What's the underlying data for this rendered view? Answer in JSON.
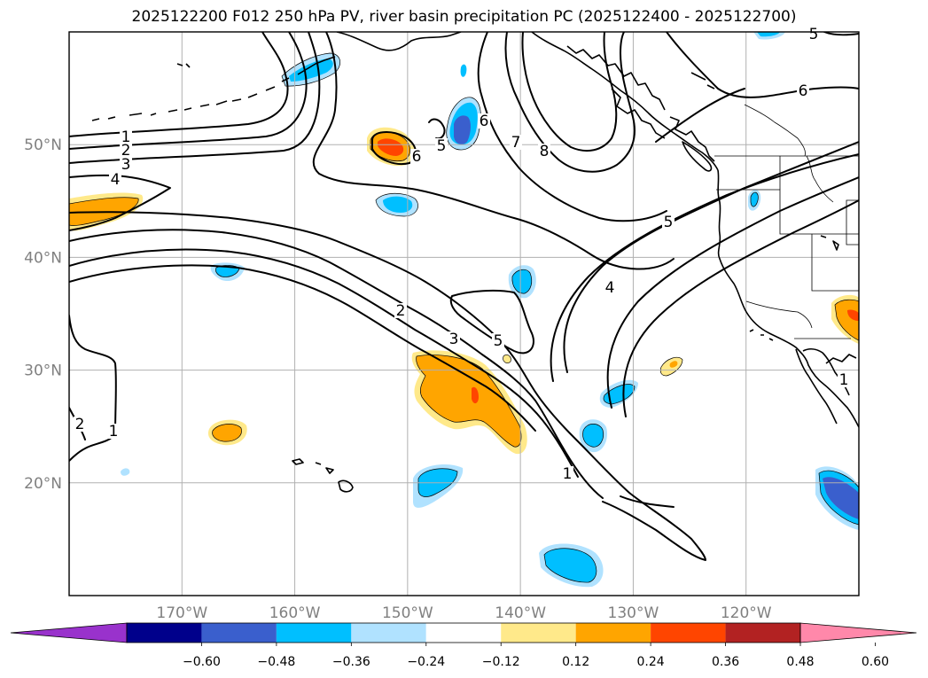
{
  "title": "2025122200 F012 250 hPa PV, river basin precipitation PC (2025122400 - 2025122700)",
  "map": {
    "lon_range": [
      -180,
      -110
    ],
    "lat_range": [
      10,
      60
    ],
    "lat_ticks": [
      {
        "value": 50,
        "label": "50°N"
      },
      {
        "value": 40,
        "label": "40°N"
      },
      {
        "value": 30,
        "label": "30°N"
      },
      {
        "value": 20,
        "label": "20°N"
      }
    ],
    "lon_ticks": [
      {
        "value": -170,
        "label": "170°W"
      },
      {
        "value": -160,
        "label": "160°W"
      },
      {
        "value": -150,
        "label": "150°W"
      },
      {
        "value": -140,
        "label": "140°W"
      },
      {
        "value": -130,
        "label": "130°W"
      },
      {
        "value": -120,
        "label": "120°W"
      }
    ],
    "grid": true,
    "contour_field": "250 hPa PV",
    "pv_contour_labels": [
      "1",
      "2",
      "3",
      "4",
      "5",
      "6",
      "7",
      "8"
    ]
  },
  "colorbar": {
    "extend": "both",
    "colors": [
      "#9932cc",
      "#00008b",
      "#3a5fcd",
      "#00bfff",
      "#b0e2ff",
      "#ffffff",
      "#ffe98a",
      "#ffa500",
      "#ff4500",
      "#b22222",
      "#ff88aa"
    ],
    "tick_labels": [
      "−0.60",
      "−0.48",
      "−0.36",
      "−0.24",
      "−0.12",
      "0.12",
      "0.24",
      "0.36",
      "0.48",
      "0.60"
    ]
  }
}
